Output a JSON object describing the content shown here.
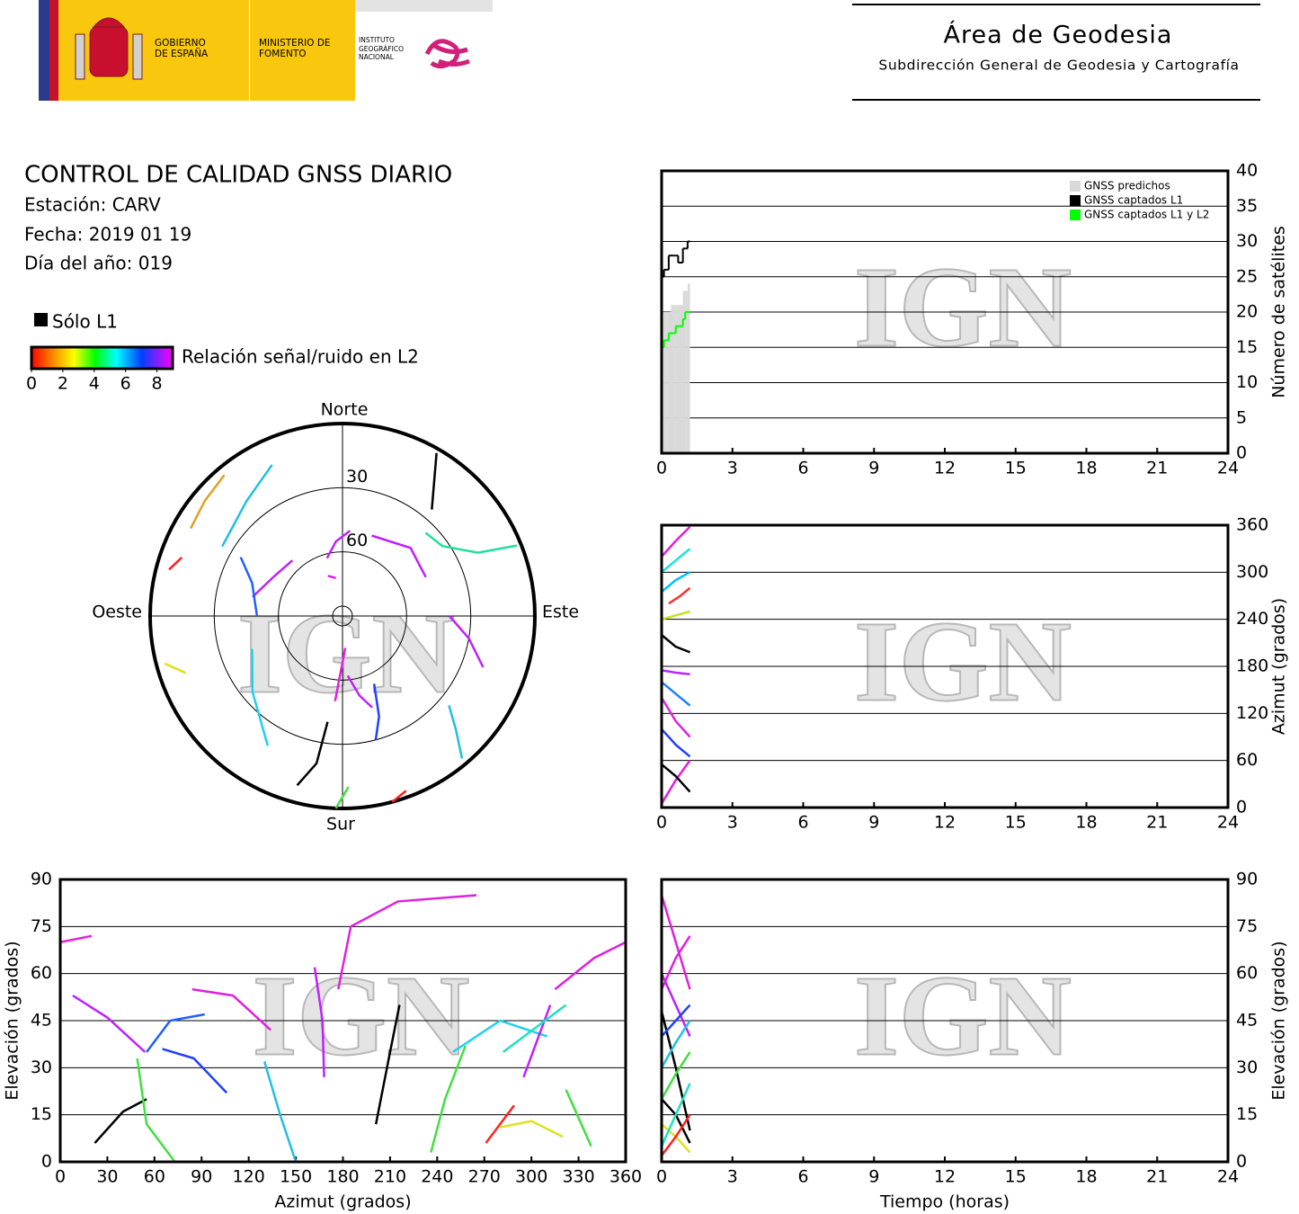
{
  "header": {
    "gov": "GOBIERNO DE ESPAÑA",
    "ministry": "MINISTERIO DE FOMENTO",
    "institute": "INSTITUTO GEOGRÁFICO NACIONAL",
    "area": "Área de Geodesia",
    "subdirection": "Subdirección General de Geodesia y Cartografía"
  },
  "station_info": {
    "title": "CONTROL DE CALIDAD GNSS DIARIO",
    "station": "Estación: CARV",
    "date": "Fecha: 2019 01 19",
    "doy": "Día del año: 019"
  },
  "watermark": "IGN",
  "chart_data": [
    {
      "type": "step",
      "ylabel": "Número de satélites",
      "xlim": [
        0,
        24
      ],
      "xticks": [
        0,
        3,
        6,
        9,
        12,
        15,
        18,
        21,
        24
      ],
      "ylim": [
        0,
        40
      ],
      "yticks": [
        0,
        5,
        10,
        15,
        20,
        25,
        30,
        35,
        40
      ],
      "grid": true,
      "legend": "upper right",
      "x": [
        0,
        0.1,
        0.2,
        0.3,
        0.4,
        0.5,
        0.6,
        0.7,
        0.8,
        0.9,
        1.0,
        1.1
      ],
      "series": [
        {
          "name": "GNSS predichos",
          "color": "#d9d9d9",
          "style": "bars",
          "values": [
            20,
            20,
            20,
            20,
            21,
            21,
            21,
            21,
            21,
            23,
            23,
            24
          ]
        },
        {
          "name": "GNSS captados L1",
          "color": "#000000",
          "style": "step",
          "values": [
            25,
            26,
            26,
            28,
            28,
            28,
            28,
            27,
            27,
            29,
            29,
            30
          ]
        },
        {
          "name": "GNSS captados L1 y L2",
          "color": "#00ff00",
          "style": "step",
          "values": [
            15,
            16,
            16,
            17,
            17,
            17,
            18,
            18,
            18,
            19,
            20,
            20
          ]
        }
      ]
    },
    {
      "type": "line",
      "ylabel": "Azimut (grados)",
      "xlim": [
        0,
        24
      ],
      "xticks": [
        0,
        3,
        6,
        9,
        12,
        15,
        18,
        21,
        24
      ],
      "ylim": [
        0,
        360
      ],
      "yticks": [
        0,
        60,
        120,
        180,
        240,
        300,
        360
      ],
      "grid": true,
      "series": [
        {
          "color": "#e020e0",
          "x": [
            0,
            0.6,
            1.2
          ],
          "values": [
            5,
            35,
            60
          ]
        },
        {
          "color": "#000000",
          "x": [
            0,
            0.6,
            1.2
          ],
          "values": [
            55,
            40,
            20
          ]
        },
        {
          "color": "#2040ff",
          "x": [
            0,
            0.6,
            1.2
          ],
          "values": [
            100,
            80,
            65
          ]
        },
        {
          "color": "#e020e0",
          "x": [
            0,
            0.6,
            1.2
          ],
          "values": [
            140,
            110,
            90
          ]
        },
        {
          "color": "#2080ff",
          "x": [
            0,
            0.6,
            1.2
          ],
          "values": [
            160,
            145,
            130
          ]
        },
        {
          "color": "#c020ff",
          "x": [
            0,
            0.6,
            1.2
          ],
          "values": [
            175,
            172,
            170
          ]
        },
        {
          "color": "#000000",
          "x": [
            0,
            0.6,
            1.2
          ],
          "values": [
            220,
            205,
            198
          ]
        },
        {
          "color": "#ff3030",
          "x": [
            0.3,
            0.8,
            1.2
          ],
          "values": [
            260,
            270,
            280
          ]
        },
        {
          "color": "#c8e020",
          "x": [
            0,
            0.6,
            1.2
          ],
          "values": [
            240,
            245,
            250
          ]
        },
        {
          "color": "#20e0e0",
          "x": [
            0,
            0.6,
            1.2
          ],
          "values": [
            300,
            315,
            330
          ]
        },
        {
          "color": "#e020e0",
          "x": [
            0,
            0.6,
            1.2
          ],
          "values": [
            320,
            340,
            358
          ]
        },
        {
          "color": "#00c0ff",
          "x": [
            0,
            0.6,
            1.2
          ],
          "values": [
            275,
            290,
            300
          ]
        }
      ]
    },
    {
      "type": "line",
      "xlabel": "Azimut (grados)",
      "ylabel": "Elevación (grados)",
      "xlim": [
        0,
        360
      ],
      "xticks": [
        0,
        30,
        60,
        90,
        120,
        150,
        180,
        210,
        240,
        270,
        300,
        330,
        360
      ],
      "ylim": [
        0,
        90
      ],
      "yticks": [
        0,
        15,
        30,
        45,
        60,
        75,
        90
      ],
      "grid": true,
      "series": [
        {
          "color": "#e020e0",
          "x": [
            0,
            20
          ],
          "values": [
            70,
            72
          ]
        },
        {
          "color": "#c020ff",
          "x": [
            8,
            30,
            54
          ],
          "values": [
            53,
            46,
            35
          ]
        },
        {
          "color": "#2060ff",
          "x": [
            55,
            70,
            92
          ],
          "values": [
            35,
            45,
            47
          ]
        },
        {
          "color": "#e020e0",
          "x": [
            84,
            110,
            134
          ],
          "values": [
            55,
            53,
            42
          ]
        },
        {
          "color": "#2040ff",
          "x": [
            65,
            85,
            106
          ],
          "values": [
            36,
            33,
            22
          ]
        },
        {
          "color": "#000000",
          "x": [
            22,
            40,
            55
          ],
          "values": [
            6,
            16,
            20
          ]
        },
        {
          "color": "#40e040",
          "x": [
            49,
            55,
            73
          ],
          "values": [
            33,
            12,
            0
          ]
        },
        {
          "color": "#20c0e0",
          "x": [
            130,
            140,
            150
          ],
          "values": [
            32,
            15,
            0
          ]
        },
        {
          "color": "#c020ff",
          "x": [
            162,
            167,
            168
          ],
          "values": [
            62,
            45,
            27
          ]
        },
        {
          "color": "#e020e0",
          "x": [
            177,
            185,
            215,
            265
          ],
          "values": [
            55,
            75,
            83,
            85
          ]
        },
        {
          "color": "#000000",
          "x": [
            201,
            210,
            216
          ],
          "values": [
            12,
            35,
            50
          ]
        },
        {
          "color": "#40e040",
          "x": [
            236,
            245,
            258
          ],
          "values": [
            3,
            20,
            37
          ]
        },
        {
          "color": "#ff2020",
          "x": [
            271,
            289
          ],
          "values": [
            6,
            18
          ]
        },
        {
          "color": "#e0e020",
          "x": [
            280,
            300,
            320
          ],
          "values": [
            11,
            13,
            8
          ]
        },
        {
          "color": "#20d0f0",
          "x": [
            250,
            280,
            310
          ],
          "values": [
            35,
            45,
            40
          ]
        },
        {
          "color": "#c020ff",
          "x": [
            295,
            312
          ],
          "values": [
            27,
            50
          ]
        },
        {
          "color": "#20e0c0",
          "x": [
            282,
            322
          ],
          "values": [
            35,
            50
          ]
        },
        {
          "color": "#e020e0",
          "x": [
            315,
            340,
            360
          ],
          "values": [
            55,
            65,
            70
          ]
        },
        {
          "color": "#40e040",
          "x": [
            322,
            338
          ],
          "values": [
            23,
            5
          ]
        }
      ]
    },
    {
      "type": "line",
      "xlabel": "Tiempo (horas)",
      "ylabel": "Elevación (grados)",
      "xlim": [
        0,
        24
      ],
      "xticks": [
        0,
        3,
        6,
        9,
        12,
        15,
        18,
        21,
        24
      ],
      "ylim": [
        0,
        90
      ],
      "yticks": [
        0,
        15,
        30,
        45,
        60,
        75,
        90
      ],
      "grid": true,
      "series": [
        {
          "color": "#e020e0",
          "x": [
            0,
            0.6,
            1.2
          ],
          "values": [
            85,
            70,
            55
          ]
        },
        {
          "color": "#e020e0",
          "x": [
            0,
            0.6,
            1.2
          ],
          "values": [
            55,
            65,
            72
          ]
        },
        {
          "color": "#c020ff",
          "x": [
            0,
            0.6,
            1.2
          ],
          "values": [
            60,
            50,
            40
          ]
        },
        {
          "color": "#000000",
          "x": [
            0,
            0.6,
            1.2
          ],
          "values": [
            48,
            30,
            10
          ]
        },
        {
          "color": "#2040ff",
          "x": [
            0,
            0.6,
            1.2
          ],
          "values": [
            40,
            45,
            50
          ]
        },
        {
          "color": "#20c0e0",
          "x": [
            0,
            0.6,
            1.2
          ],
          "values": [
            30,
            38,
            45
          ]
        },
        {
          "color": "#40e040",
          "x": [
            0,
            0.6,
            1.2
          ],
          "values": [
            20,
            28,
            35
          ]
        },
        {
          "color": "#000000",
          "x": [
            0,
            0.6,
            1.2
          ],
          "values": [
            20,
            15,
            6
          ]
        },
        {
          "color": "#e0e020",
          "x": [
            0,
            0.6,
            1.2
          ],
          "values": [
            12,
            8,
            3
          ]
        },
        {
          "color": "#ff2020",
          "x": [
            0,
            0.6,
            1.2
          ],
          "values": [
            2,
            8,
            15
          ]
        },
        {
          "color": "#20e0c0",
          "x": [
            0,
            0.6,
            1.2
          ],
          "values": [
            5,
            15,
            25
          ]
        }
      ]
    },
    {
      "type": "polar",
      "directions": {
        "north": "Norte",
        "south": "Sur",
        "east": "Este",
        "west": "Oeste"
      },
      "ylim": [
        0,
        90
      ],
      "rticks": [
        30,
        60
      ],
      "only_l1": {
        "label": "Sólo L1",
        "color": "#000000"
      },
      "colorbar": {
        "label": "Relación señal/ruido en L2",
        "lim": [
          0,
          9
        ],
        "ticks": [
          0,
          2,
          4,
          6,
          8
        ]
      },
      "series": [
        {
          "color": "#e020e0",
          "x": [
            340,
            350
          ],
          "values": [
            70,
            72
          ]
        },
        {
          "color": "#c020ff",
          "x": [
            282,
            300,
            318
          ],
          "values": [
            47,
            53,
            55
          ]
        },
        {
          "color": "#20c0e0",
          "x": [
            300,
            320,
            335
          ],
          "values": [
            25,
            20,
            12
          ]
        },
        {
          "color": "#e0a020",
          "x": [
            300,
            310,
            320
          ],
          "values": [
            8,
            6,
            4
          ]
        },
        {
          "color": "#ff2020",
          "x": [
            285,
            290
          ],
          "values": [
            6,
            10
          ]
        },
        {
          "color": "#e0e020",
          "x": [
            250,
            255
          ],
          "values": [
            12,
            4
          ]
        },
        {
          "color": "#2060ff",
          "x": [
            300,
            290,
            270
          ],
          "values": [
            35,
            45,
            50
          ]
        },
        {
          "color": "#20d0f0",
          "x": [
            210,
            230,
            250
          ],
          "values": [
            20,
            35,
            45
          ]
        },
        {
          "color": "#000000",
          "x": [
            195,
            190,
            188
          ],
          "values": [
            8,
            20,
            40
          ]
        },
        {
          "color": "#c020ff",
          "x": [
            345,
            355,
            5
          ],
          "values": [
            62,
            55,
            50
          ]
        },
        {
          "color": "#c020ff",
          "x": [
            175,
            168,
            162
          ],
          "values": [
            62,
            52,
            45
          ]
        },
        {
          "color": "#2040ff",
          "x": [
            165,
            160,
            155
          ],
          "values": [
            30,
            40,
            55
          ]
        },
        {
          "color": "#c020ff",
          "x": [
            20,
            45,
            65
          ],
          "values": [
            50,
            45,
            47
          ]
        },
        {
          "color": "#20e0a0",
          "x": [
            45,
            55,
            65,
            68
          ],
          "values": [
            35,
            33,
            20,
            2
          ]
        },
        {
          "color": "#000000",
          "x": [
            30,
            40
          ],
          "values": [
            2,
            25
          ]
        },
        {
          "color": "#c020ff",
          "x": [
            90,
            100,
            110
          ],
          "values": [
            40,
            30,
            20
          ]
        },
        {
          "color": "#20c0e0",
          "x": [
            130,
            135,
            140
          ],
          "values": [
            25,
            15,
            3
          ]
        },
        {
          "color": "#40e040",
          "x": [
            178,
            182
          ],
          "values": [
            10,
            0
          ]
        },
        {
          "color": "#ff2020",
          "x": [
            160,
            165
          ],
          "values": [
            3,
            0
          ]
        },
        {
          "color": "#e020e0",
          "x": [
            185,
            175
          ],
          "values": [
            50,
            75
          ]
        }
      ]
    }
  ]
}
